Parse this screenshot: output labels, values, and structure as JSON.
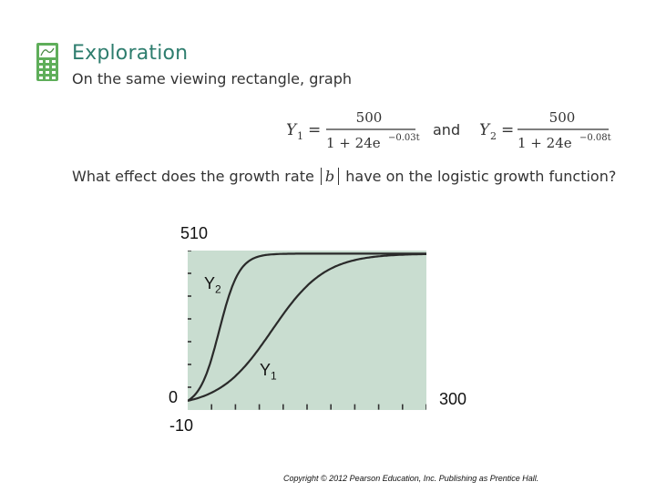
{
  "header": {
    "title": "Exploration",
    "intro": "On the same viewing rectangle, graph"
  },
  "formulas": {
    "y1": {
      "name": "Y",
      "sub": "1",
      "numerator": "500",
      "denominator": "1 + 24e",
      "exponent": "−0.03t"
    },
    "connector": "and",
    "y2": {
      "name": "Y",
      "sub": "2",
      "numerator": "500",
      "denominator": "1 + 24e",
      "exponent": "−0.08t"
    }
  },
  "question": {
    "before": "What effect does the growth rate",
    "variable": "b",
    "after": "have on the logistic growth function?"
  },
  "graph": {
    "y_max_label": "510",
    "y_min_label": "-10",
    "x_min_label": "0",
    "x_max_label": "300",
    "curve_label_y2": {
      "name": "Y",
      "sub": "2"
    },
    "curve_label_y1": {
      "name": "Y",
      "sub": "1"
    }
  },
  "chart_data": {
    "type": "line",
    "title": "",
    "xlabel": "",
    "ylabel": "",
    "xlim": [
      0,
      300
    ],
    "ylim": [
      -10,
      510
    ],
    "x_tick_count": 10,
    "y_tick_count": 7,
    "series": [
      {
        "name": "Y1",
        "function": "500/(1+24e^(-0.03t))",
        "a": 500,
        "c": 24,
        "k": 0.03,
        "color": "#2a2a2a"
      },
      {
        "name": "Y2",
        "function": "500/(1+24e^(-0.08t))",
        "a": 500,
        "c": 24,
        "k": 0.08,
        "color": "#2a2a2a"
      }
    ],
    "plot_background": "#c9ddd0"
  },
  "footer": {
    "copyright": "Copyright © 2012 Pearson Education, Inc. Publishing as Prentice Hall."
  }
}
